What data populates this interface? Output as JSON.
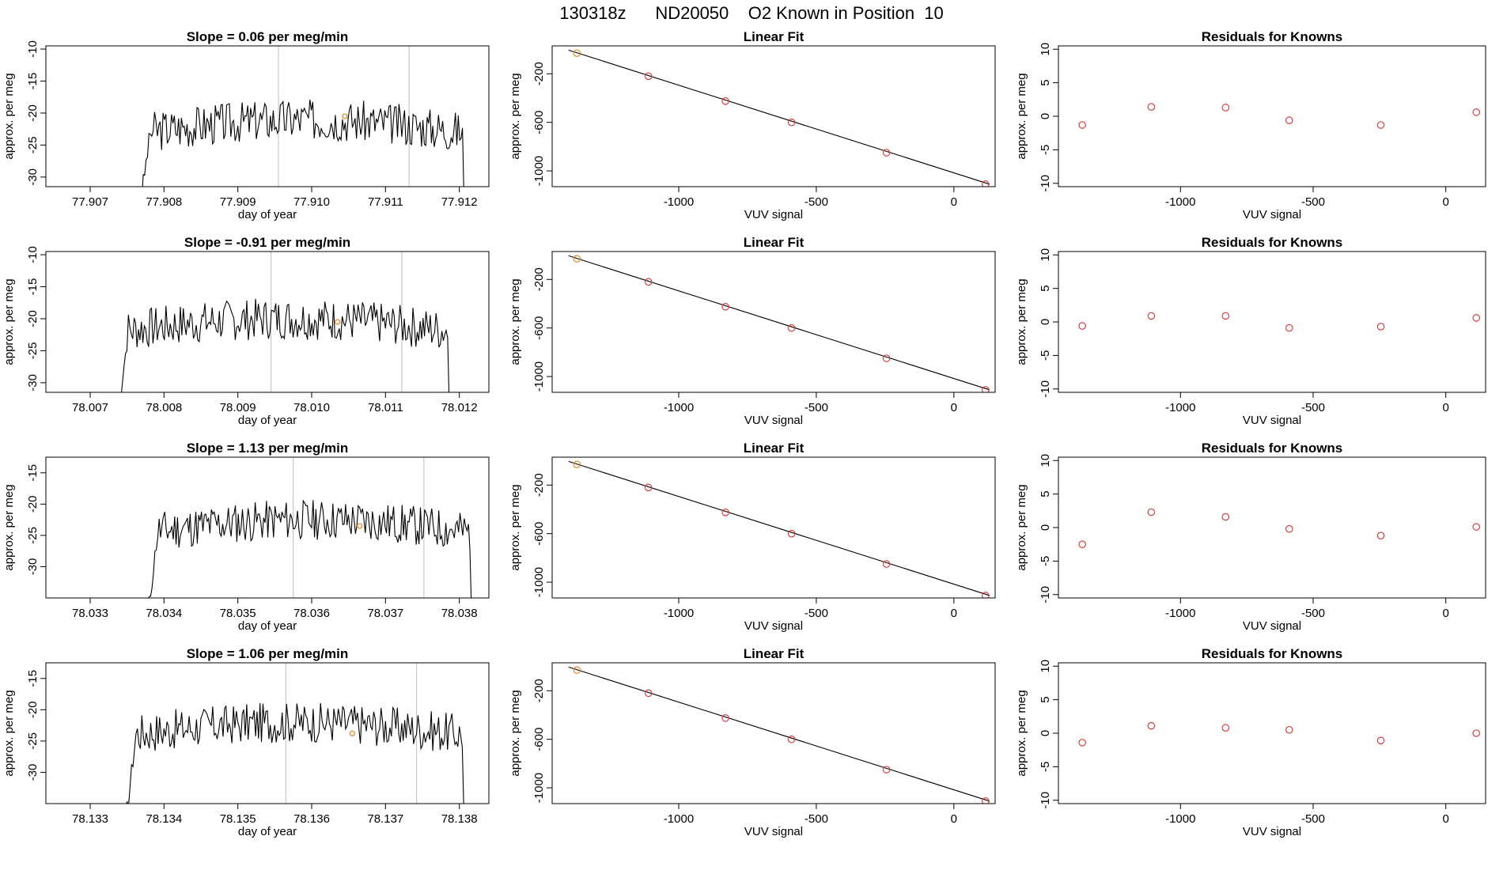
{
  "figure_title": "130318z      ND20050    O2 Known in Position  10",
  "colors": {
    "trace": "#000000",
    "marker_known": "#e08a2c",
    "marker_fit": "#d04040",
    "vline": "#c8c8c8",
    "axis": "#000000"
  },
  "chart_data": [
    {
      "type": "line",
      "title": "Slope =  0.06  per meg/min",
      "xlabel": "day of year",
      "ylabel": "approx. per meg",
      "xlim": [
        77.9064,
        77.9124
      ],
      "ylim": [
        -31.5,
        -9.5
      ],
      "xticks": [
        77.907,
        77.908,
        77.909,
        77.91,
        77.911,
        77.912
      ],
      "xtick_labels": [
        "77.907",
        "77.908",
        "77.909",
        "77.910",
        "77.911",
        "77.912"
      ],
      "yticks": [
        -30,
        -25,
        -20,
        -15,
        -10
      ],
      "ytick_labels": [
        "-30",
        "-25",
        "-20",
        "-15",
        "-10"
      ],
      "trace_start": 77.9077,
      "trace_end": 77.9121,
      "baseline": -23,
      "vlines": [
        77.90955,
        77.91132
      ],
      "marker": {
        "x": 77.91045,
        "y": -20.5
      },
      "seed": 3
    },
    {
      "type": "scatter",
      "title": "Linear Fit",
      "xlabel": "VUV signal",
      "ylabel": "approx. per meg",
      "xlim": [
        -1460,
        150
      ],
      "ylim": [
        -1130,
        30
      ],
      "xticks": [
        -1000,
        -500,
        0
      ],
      "xtick_labels": [
        "-1000",
        "-500",
        "0"
      ],
      "yticks": [
        -1000,
        -600,
        -200
      ],
      "ytick_labels": [
        "-1000",
        "-600",
        "-200"
      ],
      "fit_line": {
        "x": [
          -1400,
          130
        ],
        "y": [
          -5,
          -1110
        ]
      },
      "points": [
        {
          "x": -1370,
          "y": -30,
          "known": true
        },
        {
          "x": -1110,
          "y": -220,
          "known": false
        },
        {
          "x": -830,
          "y": -425,
          "known": false
        },
        {
          "x": -590,
          "y": -600,
          "known": false
        },
        {
          "x": -245,
          "y": -850,
          "known": false
        },
        {
          "x": 115,
          "y": -1110,
          "known": false
        }
      ]
    },
    {
      "type": "scatter",
      "title": "Residuals for Knowns",
      "xlabel": "VUV signal",
      "ylabel": "approx. per meg",
      "xlim": [
        -1460,
        150
      ],
      "ylim": [
        -10.5,
        10.5
      ],
      "xticks": [
        -1000,
        -500,
        0
      ],
      "xtick_labels": [
        "-1000",
        "-500",
        "0"
      ],
      "yticks": [
        -10,
        -5,
        0,
        5,
        10
      ],
      "ytick_labels": [
        "-10",
        "-5",
        "0",
        "5",
        "10"
      ],
      "points": [
        {
          "x": -1370,
          "y": -1.3
        },
        {
          "x": -1110,
          "y": 1.4
        },
        {
          "x": -830,
          "y": 1.3
        },
        {
          "x": -590,
          "y": -0.6
        },
        {
          "x": -245,
          "y": -1.3
        },
        {
          "x": 115,
          "y": 0.6
        }
      ]
    },
    {
      "type": "line",
      "title": "Slope =  -0.91  per meg/min",
      "xlabel": "day of year",
      "ylabel": "approx. per meg",
      "xlim": [
        78.0064,
        78.0124
      ],
      "ylim": [
        -31.5,
        -9.5
      ],
      "xticks": [
        78.007,
        78.008,
        78.009,
        78.01,
        78.011,
        78.012
      ],
      "xtick_labels": [
        "78.007",
        "78.008",
        "78.009",
        "78.010",
        "78.011",
        "78.012"
      ],
      "yticks": [
        -30,
        -25,
        -20,
        -15,
        -10
      ],
      "ytick_labels": [
        "-30",
        "-25",
        "-20",
        "-15",
        "-10"
      ],
      "trace_start": 78.0074,
      "trace_end": 78.0119,
      "baseline": -22,
      "vlines": [
        78.00945,
        78.01122
      ],
      "marker": {
        "x": 78.01035,
        "y": -20.5
      },
      "seed": 7
    },
    {
      "type": "scatter",
      "title": "Linear Fit",
      "xlabel": "VUV signal",
      "ylabel": "approx. per meg",
      "xlim": [
        -1460,
        150
      ],
      "ylim": [
        -1130,
        30
      ],
      "xticks": [
        -1000,
        -500,
        0
      ],
      "xtick_labels": [
        "-1000",
        "-500",
        "0"
      ],
      "yticks": [
        -1000,
        -600,
        -200
      ],
      "ytick_labels": [
        "-1000",
        "-600",
        "-200"
      ],
      "fit_line": {
        "x": [
          -1400,
          130
        ],
        "y": [
          -5,
          -1110
        ]
      },
      "points": [
        {
          "x": -1370,
          "y": -30,
          "known": true
        },
        {
          "x": -1110,
          "y": -220,
          "known": false
        },
        {
          "x": -830,
          "y": -425,
          "known": false
        },
        {
          "x": -590,
          "y": -600,
          "known": false
        },
        {
          "x": -245,
          "y": -850,
          "known": false
        },
        {
          "x": 115,
          "y": -1110,
          "known": false
        }
      ]
    },
    {
      "type": "scatter",
      "title": "Residuals for Knowns",
      "xlabel": "VUV signal",
      "ylabel": "approx. per meg",
      "xlim": [
        -1460,
        150
      ],
      "ylim": [
        -10.5,
        10.5
      ],
      "xticks": [
        -1000,
        -500,
        0
      ],
      "xtick_labels": [
        "-1000",
        "-500",
        "0"
      ],
      "yticks": [
        -10,
        -5,
        0,
        5,
        10
      ],
      "ytick_labels": [
        "-10",
        "-5",
        "0",
        "5",
        "10"
      ],
      "points": [
        {
          "x": -1370,
          "y": -0.6
        },
        {
          "x": -1110,
          "y": 0.9
        },
        {
          "x": -830,
          "y": 0.9
        },
        {
          "x": -590,
          "y": -0.9
        },
        {
          "x": -245,
          "y": -0.7
        },
        {
          "x": 115,
          "y": 0.6
        }
      ]
    },
    {
      "type": "line",
      "title": "Slope =  1.13  per meg/min",
      "xlabel": "day of year",
      "ylabel": "approx. per meg",
      "xlim": [
        78.0324,
        78.0384
      ],
      "ylim": [
        -35,
        -12.5
      ],
      "xticks": [
        78.033,
        78.034,
        78.035,
        78.036,
        78.037,
        78.038
      ],
      "xtick_labels": [
        "78.033",
        "78.034",
        "78.035",
        "78.036",
        "78.037",
        "78.038"
      ],
      "yticks": [
        -30,
        -25,
        -20,
        -15
      ],
      "ytick_labels": [
        "-30",
        "-25",
        "-20",
        "-15"
      ],
      "trace_start": 78.0338,
      "trace_end": 78.0382,
      "baseline": -24.5,
      "vlines": [
        78.03575,
        78.03752
      ],
      "marker": {
        "x": 78.03665,
        "y": -23.5
      },
      "seed": 11
    },
    {
      "type": "scatter",
      "title": "Linear Fit",
      "xlabel": "VUV signal",
      "ylabel": "approx. per meg",
      "xlim": [
        -1460,
        150
      ],
      "ylim": [
        -1130,
        30
      ],
      "xticks": [
        -1000,
        -500,
        0
      ],
      "xtick_labels": [
        "-1000",
        "-500",
        "0"
      ],
      "yticks": [
        -1000,
        -600,
        -200
      ],
      "ytick_labels": [
        "-1000",
        "-600",
        "-200"
      ],
      "fit_line": {
        "x": [
          -1400,
          130
        ],
        "y": [
          -5,
          -1110
        ]
      },
      "points": [
        {
          "x": -1370,
          "y": -30,
          "known": true
        },
        {
          "x": -1110,
          "y": -220,
          "known": false
        },
        {
          "x": -830,
          "y": -425,
          "known": false
        },
        {
          "x": -590,
          "y": -600,
          "known": false
        },
        {
          "x": -245,
          "y": -850,
          "known": false
        },
        {
          "x": 115,
          "y": -1110,
          "known": false
        }
      ]
    },
    {
      "type": "scatter",
      "title": "Residuals for Knowns",
      "xlabel": "VUV signal",
      "ylabel": "approx. per meg",
      "xlim": [
        -1460,
        150
      ],
      "ylim": [
        -10.5,
        10.5
      ],
      "xticks": [
        -1000,
        -500,
        0
      ],
      "xtick_labels": [
        "-1000",
        "-500",
        "0"
      ],
      "yticks": [
        -10,
        -5,
        0,
        5,
        10
      ],
      "ytick_labels": [
        "-10",
        "-5",
        "0",
        "5",
        "10"
      ],
      "points": [
        {
          "x": -1370,
          "y": -2.5
        },
        {
          "x": -1110,
          "y": 2.3
        },
        {
          "x": -830,
          "y": 1.6
        },
        {
          "x": -590,
          "y": -0.2
        },
        {
          "x": -245,
          "y": -1.2
        },
        {
          "x": 115,
          "y": 0.1
        }
      ]
    },
    {
      "type": "line",
      "title": "Slope =  1.06  per meg/min",
      "xlabel": "day of year",
      "ylabel": "approx. per meg",
      "xlim": [
        78.1324,
        78.1384
      ],
      "ylim": [
        -35,
        -12.5
      ],
      "xticks": [
        78.133,
        78.134,
        78.135,
        78.136,
        78.137,
        78.138
      ],
      "xtick_labels": [
        "78.133",
        "78.134",
        "78.135",
        "78.136",
        "78.137",
        "78.138"
      ],
      "yticks": [
        -30,
        -25,
        -20,
        -15
      ],
      "ytick_labels": [
        "-30",
        "-25",
        "-20",
        "-15"
      ],
      "trace_start": 78.1335,
      "trace_end": 78.1381,
      "baseline": -24,
      "vlines": [
        78.13565,
        78.13742
      ],
      "marker": {
        "x": 78.13655,
        "y": -23.8
      },
      "seed": 17
    },
    {
      "type": "scatter",
      "title": "Linear Fit",
      "xlabel": "VUV signal",
      "ylabel": "approx. per meg",
      "xlim": [
        -1460,
        150
      ],
      "ylim": [
        -1130,
        30
      ],
      "xticks": [
        -1000,
        -500,
        0
      ],
      "xtick_labels": [
        "-1000",
        "-500",
        "0"
      ],
      "yticks": [
        -1000,
        -600,
        -200
      ],
      "ytick_labels": [
        "-1000",
        "-600",
        "-200"
      ],
      "fit_line": {
        "x": [
          -1400,
          130
        ],
        "y": [
          -5,
          -1110
        ]
      },
      "points": [
        {
          "x": -1370,
          "y": -30,
          "known": true
        },
        {
          "x": -1110,
          "y": -220,
          "known": false
        },
        {
          "x": -830,
          "y": -425,
          "known": false
        },
        {
          "x": -590,
          "y": -600,
          "known": false
        },
        {
          "x": -245,
          "y": -850,
          "known": false
        },
        {
          "x": 115,
          "y": -1110,
          "known": false
        }
      ]
    },
    {
      "type": "scatter",
      "title": "Residuals for Knowns",
      "xlabel": "VUV signal",
      "ylabel": "approx. per meg",
      "xlim": [
        -1460,
        150
      ],
      "ylim": [
        -10.5,
        10.5
      ],
      "xticks": [
        -1000,
        -500,
        0
      ],
      "xtick_labels": [
        "-1000",
        "-500",
        "0"
      ],
      "yticks": [
        -10,
        -5,
        0,
        5,
        10
      ],
      "ytick_labels": [
        "-10",
        "-5",
        "0",
        "5",
        "10"
      ],
      "points": [
        {
          "x": -1370,
          "y": -1.4
        },
        {
          "x": -1110,
          "y": 1.1
        },
        {
          "x": -830,
          "y": 0.8
        },
        {
          "x": -590,
          "y": 0.5
        },
        {
          "x": -245,
          "y": -1.1
        },
        {
          "x": 115,
          "y": 0.0
        }
      ]
    }
  ]
}
